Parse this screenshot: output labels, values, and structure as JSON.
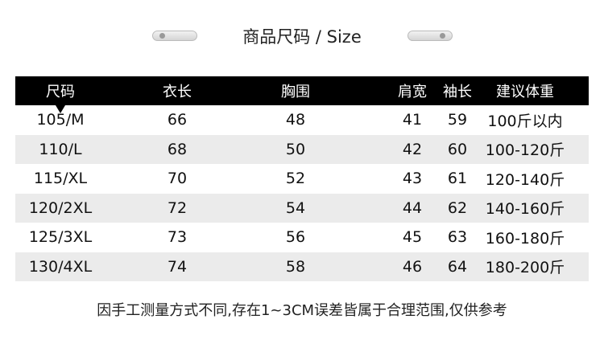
{
  "title": "商品尺码 / Size",
  "headers": [
    "尺码",
    "衣长",
    "胸围",
    "肩宽",
    "袖长",
    "建议体重"
  ],
  "rows": [
    [
      "105/M",
      "66",
      "48",
      "41",
      "59",
      "100斤以内"
    ],
    [
      "110/L",
      "68",
      "50",
      "42",
      "60",
      "100-120斤"
    ],
    [
      "115/XL",
      "70",
      "52",
      "43",
      "61",
      "120-140斤"
    ],
    [
      "120/2XL",
      "72",
      "54",
      "44",
      "62",
      "140-160斤"
    ],
    [
      "125/3XL",
      "73",
      "56",
      "45",
      "63",
      "160-180斤"
    ],
    [
      "130/4XL",
      "74",
      "58",
      "46",
      "64",
      "180-200斤"
    ]
  ],
  "note": "因手工测量方式不同,存在1~3CM误差皆属于合理范围,仅供参考"
}
